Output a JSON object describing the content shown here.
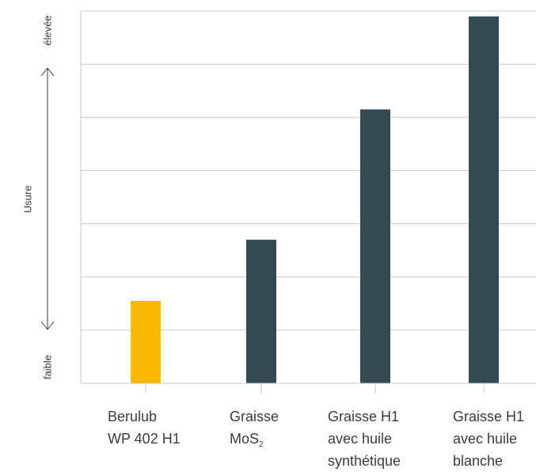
{
  "chart_data": {
    "type": "bar",
    "categories": [
      [
        "Berulub",
        "WP 402 H1"
      ],
      [
        "Graisse",
        "MoS",
        "2"
      ],
      [
        "Graisse H1",
        "avec huile",
        "synthétique"
      ],
      [
        "Graisse H1",
        "avec huile",
        "blanche"
      ]
    ],
    "values": [
      1.55,
      2.7,
      5.15,
      6.9
    ],
    "ylim": [
      0,
      7
    ],
    "ylabel": "Usure",
    "y_high_label": "élevée",
    "y_low_label": "faible",
    "grid": true,
    "colors": [
      "#F9B700",
      "#344A53",
      "#344A53",
      "#344A53"
    ]
  }
}
